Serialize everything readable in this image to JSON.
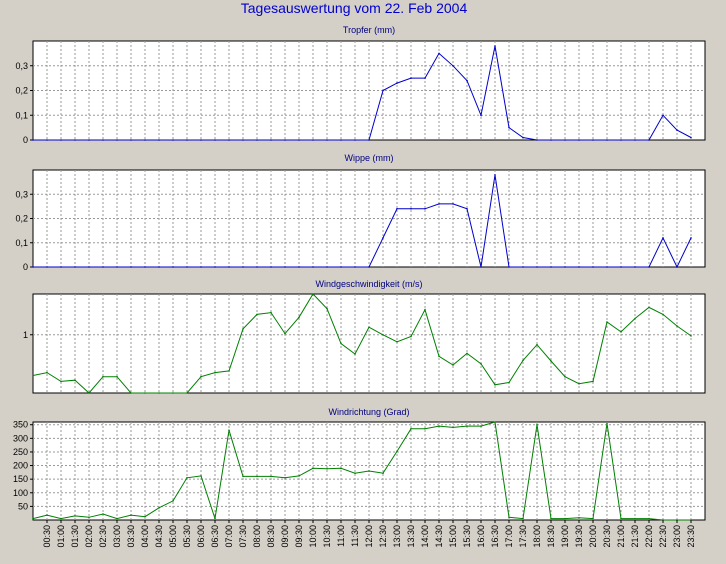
{
  "page": {
    "title": "Tagesauswertung vom 22. Feb 2004",
    "background": "#d4d0c8"
  },
  "chart_data": [
    {
      "type": "line",
      "title": "Tropfer (mm)",
      "color": "#0000cc",
      "ylim": [
        0,
        0.4
      ],
      "yticks": [
        {
          "value": 0,
          "label": "0"
        },
        {
          "value": 0.1,
          "label": "0,1"
        },
        {
          "value": 0.2,
          "label": "0,2"
        },
        {
          "value": 0.3,
          "label": "0,3"
        }
      ],
      "x": [
        "00:00",
        "00:30",
        "01:00",
        "01:30",
        "02:00",
        "02:30",
        "03:00",
        "03:30",
        "04:00",
        "04:30",
        "05:00",
        "05:30",
        "06:00",
        "06:30",
        "07:00",
        "07:30",
        "08:00",
        "08:30",
        "09:00",
        "09:30",
        "10:00",
        "10:30",
        "11:00",
        "11:30",
        "12:00",
        "12:30",
        "13:00",
        "13:30",
        "14:00",
        "14:30",
        "15:00",
        "15:30",
        "16:00",
        "16:30",
        "17:00",
        "17:30",
        "18:00",
        "18:30",
        "19:00",
        "19:30",
        "20:00",
        "20:30",
        "21:00",
        "21:30",
        "22:00",
        "22:30",
        "23:00",
        "23:30"
      ],
      "values": [
        0,
        0,
        0,
        0,
        0,
        0,
        0,
        0,
        0,
        0,
        0,
        0,
        0,
        0,
        0,
        0,
        0,
        0,
        0,
        0,
        0,
        0,
        0,
        0,
        0,
        0.2,
        0.23,
        0.25,
        0.25,
        0.35,
        0.3,
        0.24,
        0.1,
        0.38,
        0.05,
        0.01,
        0,
        0,
        0,
        0,
        0,
        0,
        0,
        0,
        0,
        0.1,
        0.04,
        0.01
      ]
    },
    {
      "type": "line",
      "title": "Wippe (mm)",
      "color": "#0000cc",
      "ylim": [
        0,
        0.4
      ],
      "yticks": [
        {
          "value": 0,
          "label": "0"
        },
        {
          "value": 0.1,
          "label": "0,1"
        },
        {
          "value": 0.2,
          "label": "0,2"
        },
        {
          "value": 0.3,
          "label": "0,3"
        }
      ],
      "x": [
        "00:00",
        "00:30",
        "01:00",
        "01:30",
        "02:00",
        "02:30",
        "03:00",
        "03:30",
        "04:00",
        "04:30",
        "05:00",
        "05:30",
        "06:00",
        "06:30",
        "07:00",
        "07:30",
        "08:00",
        "08:30",
        "09:00",
        "09:30",
        "10:00",
        "10:30",
        "11:00",
        "11:30",
        "12:00",
        "12:30",
        "13:00",
        "13:30",
        "14:00",
        "14:30",
        "15:00",
        "15:30",
        "16:00",
        "16:30",
        "17:00",
        "17:30",
        "18:00",
        "18:30",
        "19:00",
        "19:30",
        "20:00",
        "20:30",
        "21:00",
        "21:30",
        "22:00",
        "22:30",
        "23:00",
        "23:30"
      ],
      "values": [
        0,
        0,
        0,
        0,
        0,
        0,
        0,
        0,
        0,
        0,
        0,
        0,
        0,
        0,
        0,
        0,
        0,
        0,
        0,
        0,
        0,
        0,
        0,
        0,
        0,
        0.12,
        0.24,
        0.24,
        0.24,
        0.26,
        0.26,
        0.24,
        0,
        0.38,
        0,
        0,
        0,
        0,
        0,
        0,
        0,
        0,
        0,
        0,
        0,
        0.12,
        0,
        0.12
      ]
    },
    {
      "type": "line",
      "title": "Windgeschwindigkeit (m/s)",
      "color": "#008000",
      "ylim": [
        0,
        1.7
      ],
      "yticks": [
        {
          "value": 1,
          "label": "1"
        }
      ],
      "x": [
        "00:00",
        "00:30",
        "01:00",
        "01:30",
        "02:00",
        "02:30",
        "03:00",
        "03:30",
        "04:00",
        "04:30",
        "05:00",
        "05:30",
        "06:00",
        "06:30",
        "07:00",
        "07:30",
        "08:00",
        "08:30",
        "09:00",
        "09:30",
        "10:00",
        "10:30",
        "11:00",
        "11:30",
        "12:00",
        "12:30",
        "13:00",
        "13:30",
        "14:00",
        "14:30",
        "15:00",
        "15:30",
        "16:00",
        "16:30",
        "17:00",
        "17:30",
        "18:00",
        "18:30",
        "19:00",
        "19:30",
        "20:00",
        "20:30",
        "21:00",
        "21:30",
        "22:00",
        "22:30",
        "23:00",
        "23:30"
      ],
      "values": [
        0.3,
        0.35,
        0.2,
        0.22,
        0,
        0.28,
        0.28,
        0,
        0,
        0,
        0,
        0,
        0.28,
        0.35,
        0.38,
        1.1,
        1.35,
        1.38,
        1.02,
        1.3,
        1.7,
        1.45,
        0.85,
        0.67,
        1.13,
        1.0,
        0.88,
        0.97,
        1.43,
        0.63,
        0.48,
        0.68,
        0.5,
        0.14,
        0.18,
        0.56,
        0.83,
        0.55,
        0.28,
        0.16,
        0.2,
        1.22,
        1.05,
        1.28,
        1.47,
        1.35,
        1.15,
        0.98
      ]
    },
    {
      "type": "line",
      "title": "Windrichtung (Grad)",
      "color": "#008000",
      "ylim": [
        0,
        360
      ],
      "yticks": [
        {
          "value": 50,
          "label": "50"
        },
        {
          "value": 100,
          "label": "100"
        },
        {
          "value": 150,
          "label": "150"
        },
        {
          "value": 200,
          "label": "200"
        },
        {
          "value": 250,
          "label": "250"
        },
        {
          "value": 300,
          "label": "300"
        },
        {
          "value": 350,
          "label": "350"
        }
      ],
      "x": [
        "00:00",
        "00:30",
        "01:00",
        "01:30",
        "02:00",
        "02:30",
        "03:00",
        "03:30",
        "04:00",
        "04:30",
        "05:00",
        "05:30",
        "06:00",
        "06:30",
        "07:00",
        "07:30",
        "08:00",
        "08:30",
        "09:00",
        "09:30",
        "10:00",
        "10:30",
        "11:00",
        "11:30",
        "12:00",
        "12:30",
        "13:00",
        "13:30",
        "14:00",
        "14:30",
        "15:00",
        "15:30",
        "16:00",
        "16:30",
        "17:00",
        "17:30",
        "18:00",
        "18:30",
        "19:00",
        "19:30",
        "20:00",
        "20:30",
        "21:00",
        "21:30",
        "22:00",
        "22:30",
        "23:00",
        "23:30"
      ],
      "values": [
        5,
        18,
        5,
        15,
        10,
        22,
        5,
        18,
        12,
        45,
        70,
        155,
        162,
        5,
        330,
        160,
        160,
        160,
        155,
        162,
        190,
        188,
        190,
        172,
        180,
        172,
        252,
        335,
        335,
        345,
        340,
        345,
        345,
        360,
        10,
        5,
        350,
        5,
        5,
        8,
        5,
        355,
        5,
        5,
        5,
        0,
        0,
        0
      ]
    }
  ],
  "xaxis": {
    "tick_labels": [
      "00:30",
      "01:00",
      "01:30",
      "02:00",
      "02:30",
      "03:00",
      "03:30",
      "04:00",
      "04:30",
      "05:00",
      "05:30",
      "06:00",
      "06:30",
      "07:00",
      "07:30",
      "08:00",
      "08:30",
      "09:00",
      "09:30",
      "10:00",
      "10:30",
      "11:00",
      "11:30",
      "12:00",
      "12:30",
      "13:00",
      "13:30",
      "14:00",
      "14:30",
      "15:00",
      "15:30",
      "16:00",
      "16:30",
      "17:00",
      "17:30",
      "18:00",
      "18:30",
      "19:00",
      "19:30",
      "20:00",
      "20:30",
      "21:00",
      "21:30",
      "22:00",
      "22:30",
      "23:00",
      "23:30"
    ]
  },
  "grid": true
}
